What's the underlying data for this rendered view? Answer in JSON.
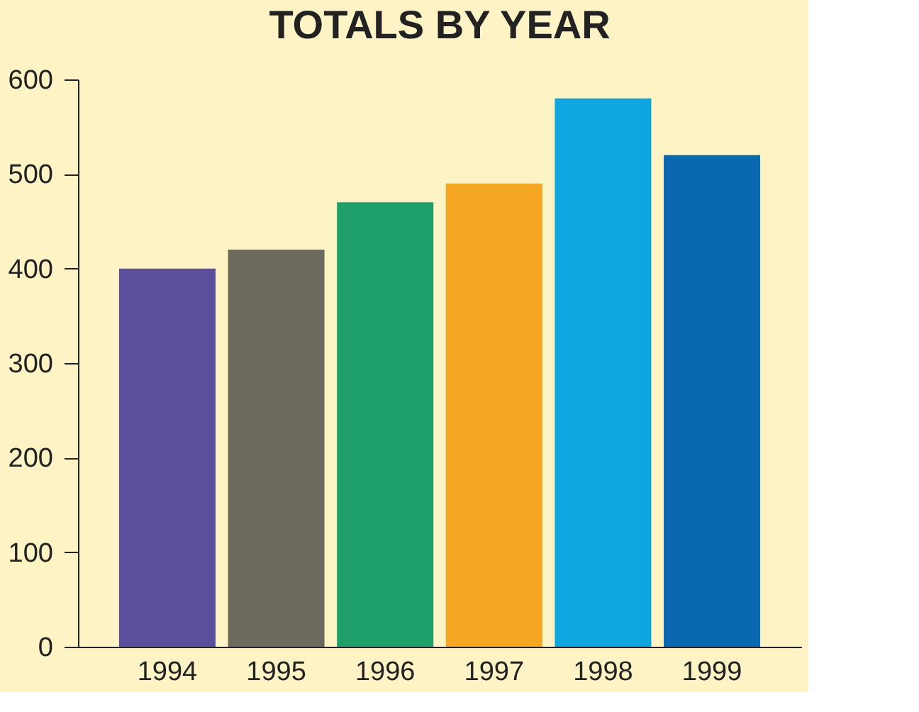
{
  "chart_data": {
    "type": "bar",
    "title": "TOTALS BY YEAR",
    "categories": [
      "1994",
      "1995",
      "1996",
      "1997",
      "1998",
      "1999"
    ],
    "values": [
      400,
      420,
      470,
      490,
      580,
      520
    ],
    "colors": [
      "#5b4f9c",
      "#6b6a5c",
      "#1fa06a",
      "#f5a623",
      "#0ea5e0",
      "#0a68b0"
    ],
    "ylim": [
      0,
      600
    ],
    "yticks": [
      0,
      100,
      200,
      300,
      400,
      500,
      600
    ],
    "grid": false
  }
}
